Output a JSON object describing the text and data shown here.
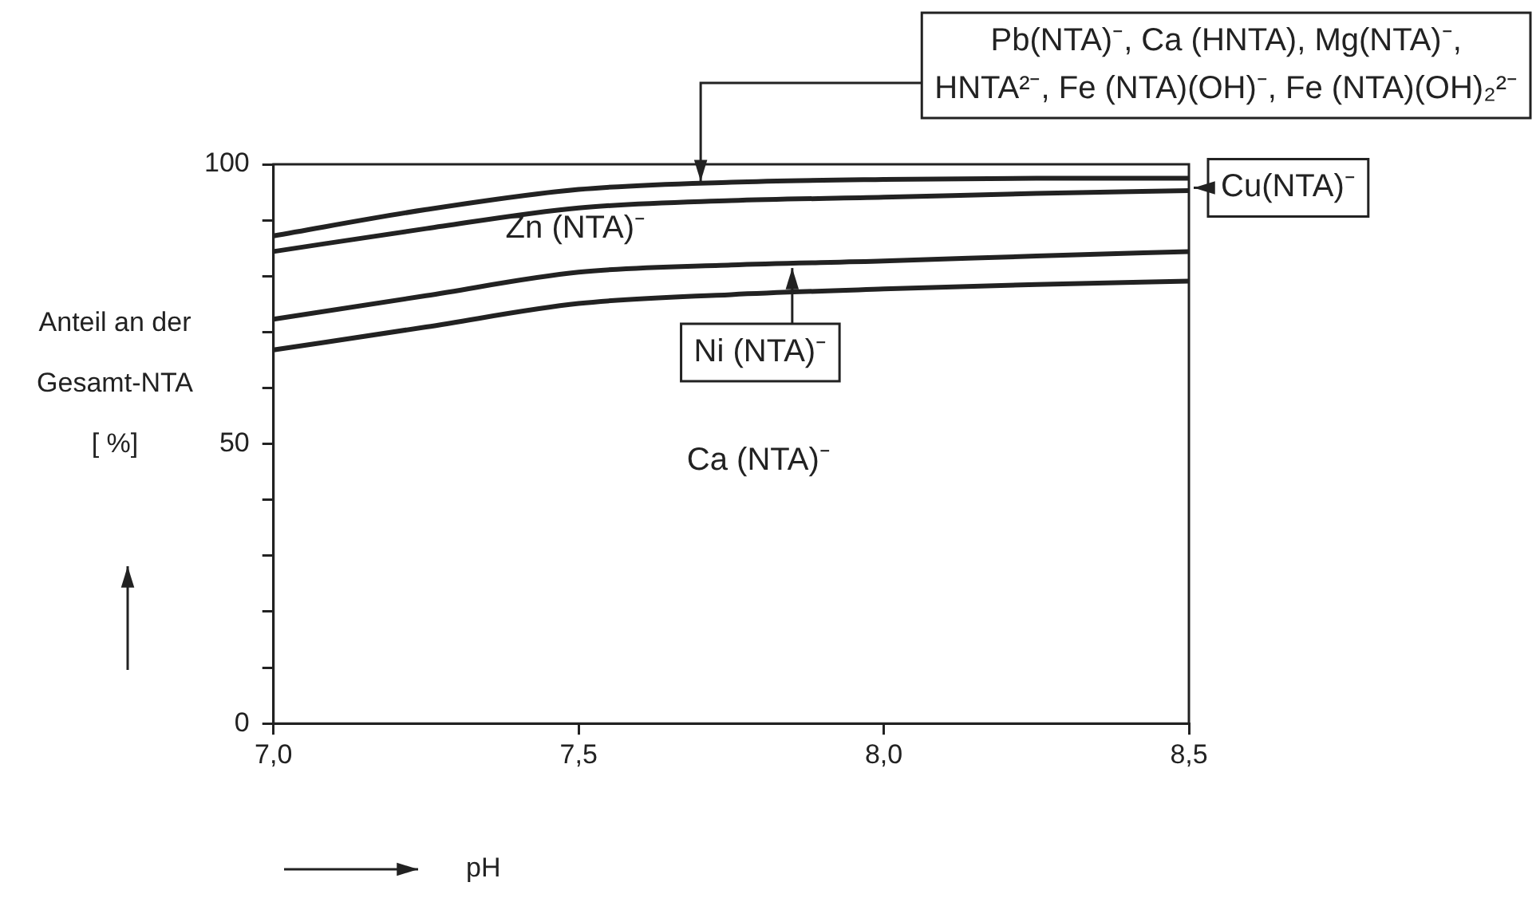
{
  "chart_data": {
    "type": "line",
    "xlabel": "pH",
    "ylabel": "Anteil an der\nGesamt-NTA\n[ %]",
    "x": [
      7.0,
      7.25,
      7.5,
      7.75,
      8.0,
      8.25,
      8.5
    ],
    "series": [
      {
        "color": "#222222",
        "values": [
          87.2,
          91.9,
          95.5,
          96.8,
          97.3,
          97.5,
          97.5
        ]
      },
      {
        "color": "#222222",
        "values": [
          84.4,
          88.5,
          92.2,
          93.5,
          94.1,
          94.8,
          95.3
        ]
      },
      {
        "color": "#222222",
        "values": [
          72.3,
          76.5,
          80.7,
          82,
          82.7,
          83.6,
          84.4
        ]
      },
      {
        "color": "#222222",
        "values": [
          66.8,
          70.9,
          75.1,
          76.7,
          77.7,
          78.5,
          79.1
        ]
      }
    ],
    "xlim": [
      7.0,
      8.5
    ],
    "ylim": [
      0,
      100
    ],
    "xticks": [
      {
        "value": 7,
        "label": "7,0"
      },
      {
        "value": 7.5,
        "label": "7,5"
      },
      {
        "value": 8,
        "label": "8,0"
      },
      {
        "value": 8.5,
        "label": "8,5"
      }
    ],
    "yticks": [
      0,
      {
        "value": 10,
        "label": null
      },
      {
        "value": 20,
        "label": null
      },
      {
        "value": 30,
        "label": null
      },
      {
        "value": 40,
        "label": null
      },
      50,
      {
        "value": 60,
        "label": null
      },
      {
        "value": 70,
        "label": null
      },
      {
        "value": 80,
        "label": null
      },
      {
        "value": 90,
        "label": null
      },
      100
    ],
    "grid": false,
    "legend": false,
    "marker": "none",
    "line_style": "solid",
    "annotations": [
      {
        "text": "Pb(NTA)⁻, Ca (HNTA), Mg(NTA)⁻,\nHNTA²⁻, Fe (NTA)(OH)⁻, Fe (NTA)(OH)₂²⁻",
        "x": 7.7,
        "y": 96.7
      },
      {
        "text": "Cu(NTA)⁻",
        "x": 8.5,
        "y": 95.8
      },
      "Zn (NTA)⁻",
      {
        "text": "Ni (NTA)⁻",
        "x": 7.85,
        "y": 82.3
      },
      "Ca (NTA)⁻"
    ]
  }
}
